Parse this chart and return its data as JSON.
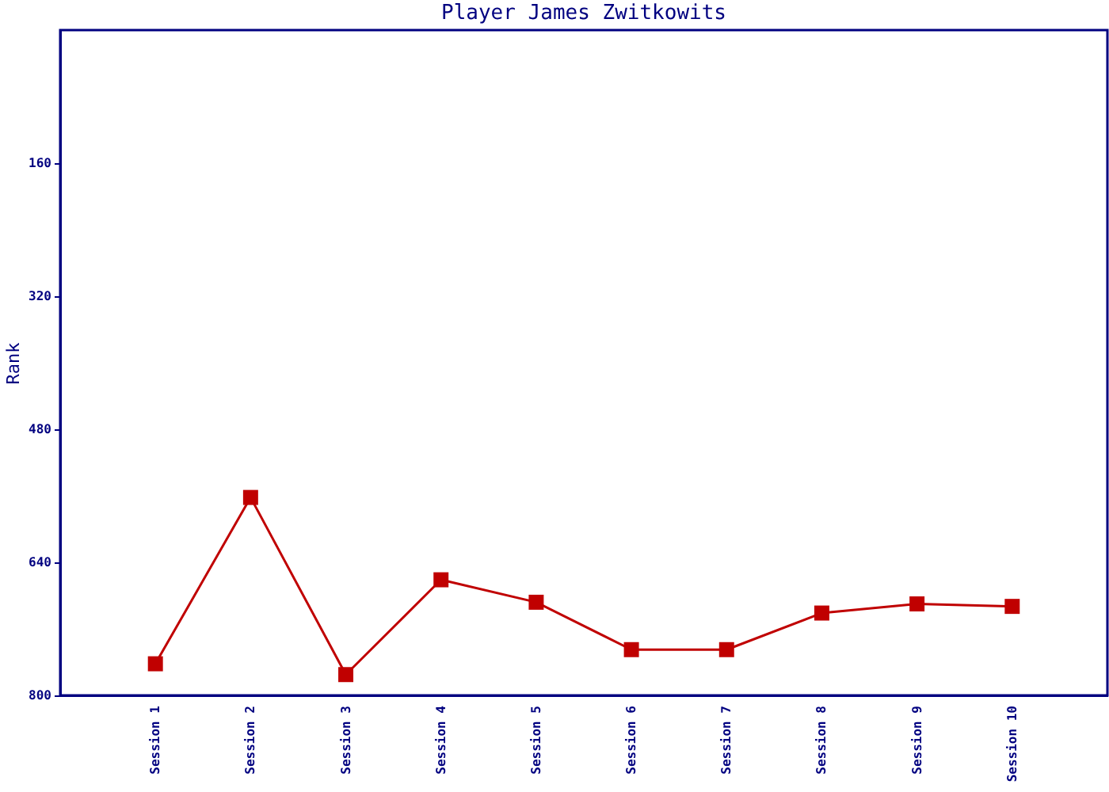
{
  "chart_data": {
    "type": "line",
    "title": "Player James Zwitkowits",
    "ylabel": "Rank",
    "categories": [
      "Session 1",
      "Session 2",
      "Session 3",
      "Session 4",
      "Session 5",
      "Session 6",
      "Session 7",
      "Session 8",
      "Session 9",
      "Session 10"
    ],
    "series": [
      {
        "color": "#c00000",
        "values": [
          762,
          562,
          775,
          661,
          688,
          745,
          745,
          701,
          690,
          693
        ]
      }
    ],
    "ylim": [
      800,
      0
    ],
    "yticks": [
      160,
      320,
      480,
      640,
      800
    ],
    "marker": "square",
    "grid": false
  }
}
